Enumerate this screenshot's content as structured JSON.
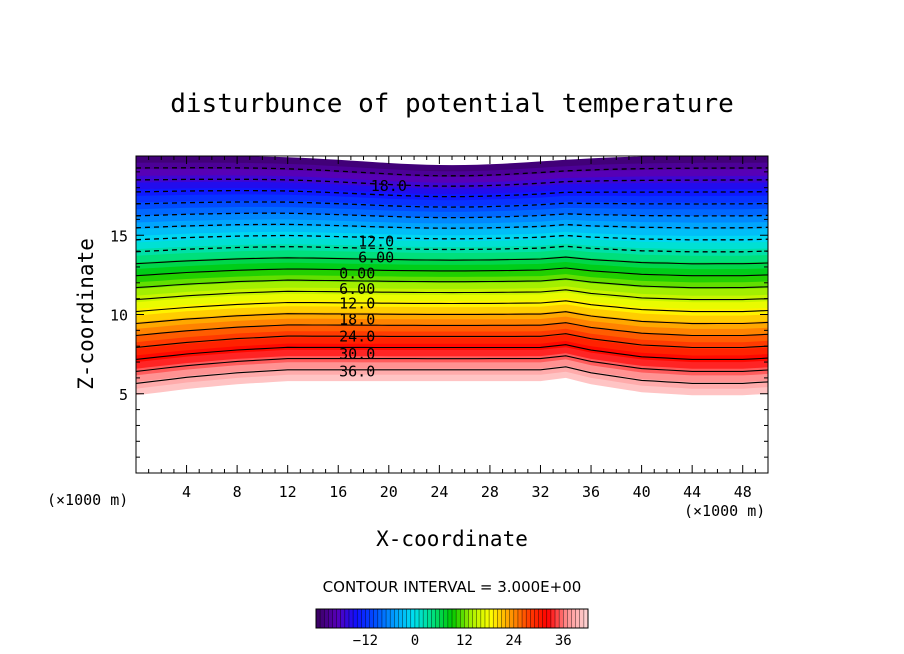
{
  "chart_data": {
    "type": "contour",
    "title": "disturbunce of potential temperature",
    "xlabel": "X-coordinate",
    "ylabel": "Z-coordinate",
    "x_unit_label": "(×1000 m)",
    "y_unit_label": "(×1000 m)",
    "xlim": [
      0,
      50
    ],
    "ylim": [
      0,
      20
    ],
    "x_ticks": [
      4,
      8,
      12,
      16,
      20,
      24,
      28,
      32,
      36,
      40,
      44,
      48
    ],
    "y_ticks": [
      5,
      10,
      15
    ],
    "contour_interval_text": "CONTOUR INTERVAL = 3.000E+00",
    "contour_interval": 3.0,
    "data_boundary_z": [
      [
        0,
        4.9
      ],
      [
        4,
        5.3
      ],
      [
        8,
        5.6
      ],
      [
        12,
        5.8
      ],
      [
        16,
        5.8
      ],
      [
        20,
        5.8
      ],
      [
        24,
        5.8
      ],
      [
        28,
        5.8
      ],
      [
        32,
        5.8
      ],
      [
        34,
        6.0
      ],
      [
        36,
        5.6
      ],
      [
        40,
        5.1
      ],
      [
        44,
        4.9
      ],
      [
        48,
        4.9
      ],
      [
        50,
        5.0
      ]
    ],
    "contour_labels": [
      {
        "text": "18.0",
        "value": -18.0,
        "x": 20.0,
        "z": 18.1,
        "style": "dashed"
      },
      {
        "text": "12.0",
        "value": -12.0,
        "x": 19.0,
        "z": 14.6,
        "style": "dashed"
      },
      {
        "text": "6.00",
        "value": -6.0,
        "x": 19.0,
        "z": 13.6,
        "style": "dashed"
      },
      {
        "text": "0.00",
        "value": 0.0,
        "x": 17.5,
        "z": 12.6,
        "style": "solid"
      },
      {
        "text": "6.00",
        "value": 6.0,
        "x": 17.5,
        "z": 11.6,
        "style": "solid"
      },
      {
        "text": "12.0",
        "value": 12.0,
        "x": 17.5,
        "z": 10.7,
        "style": "solid"
      },
      {
        "text": "18.0",
        "value": 18.0,
        "x": 17.5,
        "z": 9.7,
        "style": "solid"
      },
      {
        "text": "24.0",
        "value": 24.0,
        "x": 17.5,
        "z": 8.6,
        "style": "solid"
      },
      {
        "text": "30.0",
        "value": 30.0,
        "x": 17.5,
        "z": 7.5,
        "style": "solid"
      },
      {
        "text": "36.0",
        "value": 36.0,
        "x": 17.5,
        "z": 6.4,
        "style": "solid"
      }
    ],
    "colorbar": {
      "range": [
        -24,
        42
      ],
      "ticks": [
        -12,
        0,
        12,
        24,
        36
      ]
    },
    "colormap": [
      "#3c0068",
      "#5800b8",
      "#1010ff",
      "#0050ff",
      "#00a0ff",
      "#00e0f0",
      "#00e080",
      "#00c800",
      "#a8f000",
      "#ffff00",
      "#ffa000",
      "#ff4000",
      "#ff0000",
      "#ff9090",
      "#ffd0d0"
    ]
  }
}
